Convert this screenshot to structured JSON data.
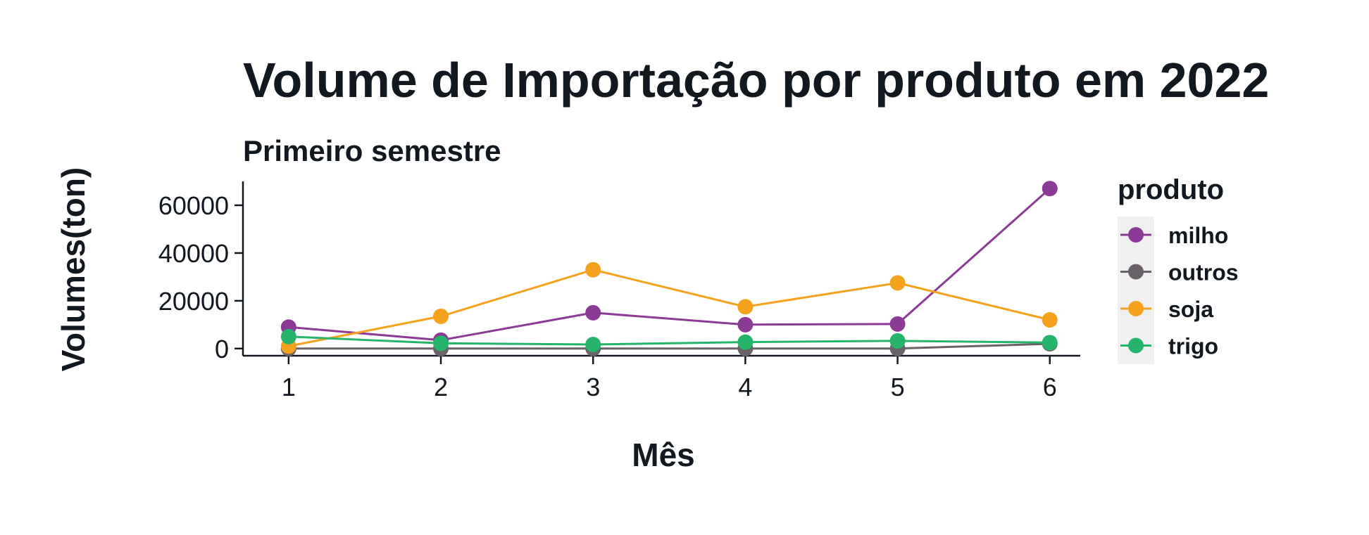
{
  "chart_data": {
    "type": "line",
    "title": "Volume de Importação por produto em 2022",
    "subtitle": "Primeiro semestre",
    "xlabel": "Mês",
    "ylabel": "Volumes(ton)",
    "x": [
      1,
      2,
      3,
      4,
      5,
      6
    ],
    "xlim": [
      0.7,
      6.2
    ],
    "ylim": [
      -3000,
      70000
    ],
    "yticks": [
      0,
      20000,
      40000,
      60000
    ],
    "xticks": [
      1,
      2,
      3,
      4,
      5,
      6
    ],
    "grid": false,
    "legend": {
      "title": "produto",
      "position": "right"
    },
    "series": [
      {
        "name": "milho",
        "color": "#8B3A96",
        "values": [
          9000,
          3500,
          15000,
          10000,
          10300,
          67000
        ]
      },
      {
        "name": "outros",
        "color": "#6B6169",
        "values": [
          0,
          0,
          0,
          0,
          0,
          2000
        ]
      },
      {
        "name": "soja",
        "color": "#F4A21E",
        "values": [
          1000,
          13500,
          33000,
          17500,
          27500,
          12000
        ]
      },
      {
        "name": "trigo",
        "color": "#26B36A",
        "values": [
          5000,
          2200,
          1700,
          2700,
          3200,
          2500
        ]
      }
    ]
  }
}
